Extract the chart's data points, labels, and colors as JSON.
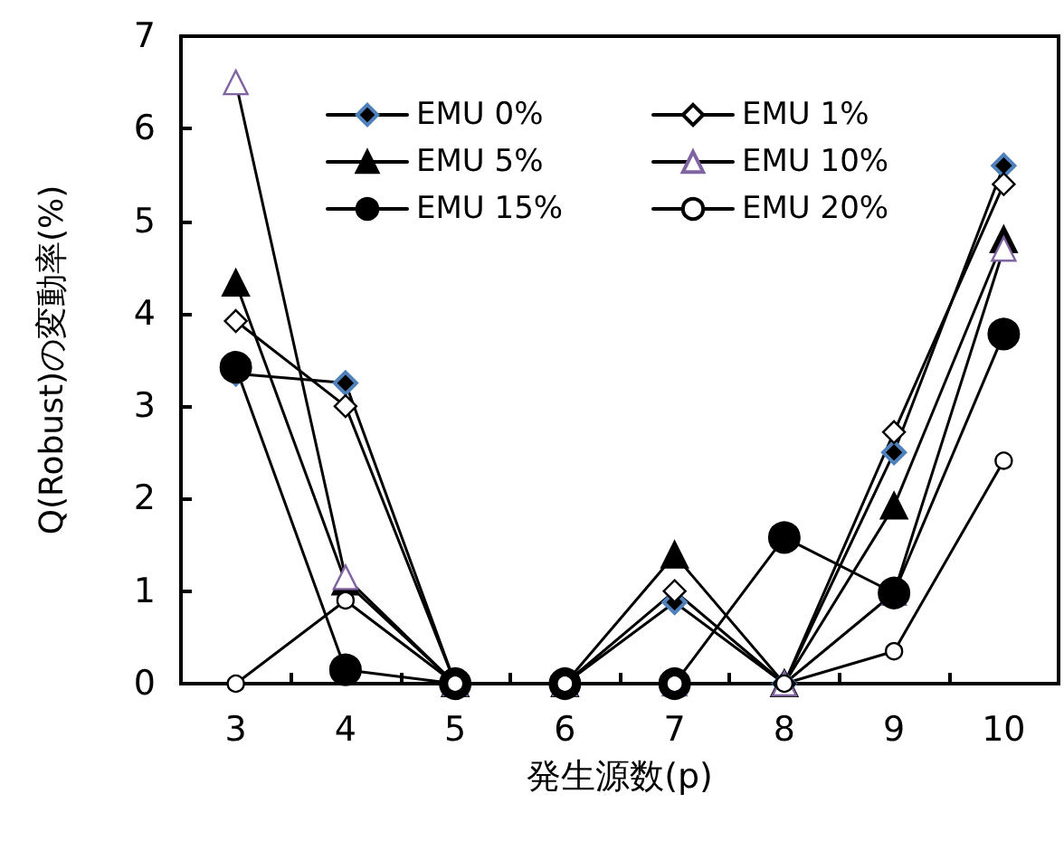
{
  "chart_data": {
    "type": "line",
    "xlabel": "発生源数(p)",
    "ylabel": "Q(Robust)の変動率(%)",
    "categories": [
      "3",
      "4",
      "5",
      "6",
      "7",
      "8",
      "9",
      "10"
    ],
    "ylim": [
      0,
      7
    ],
    "yticks": [
      0,
      1,
      2,
      3,
      4,
      5,
      6,
      7
    ],
    "grid": false,
    "legend": "top",
    "line_style": "solid",
    "series": [
      {
        "name": "EMU 0%",
        "color": "#4f81bd",
        "marker": "diamond",
        "values": [
          3.35,
          3.25,
          0,
          0,
          0.88,
          0,
          2.5,
          5.6
        ]
      },
      {
        "name": "EMU 1%",
        "color": "#000000",
        "marker": "diamond",
        "values": [
          3.92,
          3.0,
          0,
          0,
          1.0,
          0,
          2.72,
          5.4
        ]
      },
      {
        "name": "EMU 5%",
        "color": "#000000",
        "marker": "triangle",
        "values": [
          4.33,
          1.1,
          0,
          0,
          1.39,
          0,
          1.92,
          4.8
        ]
      },
      {
        "name": "EMU 10%",
        "color": "#8064a2",
        "marker": "triangle",
        "values": [
          6.5,
          1.15,
          0,
          0,
          0,
          0,
          0.98,
          4.7
        ]
      },
      {
        "name": "EMU 15%",
        "color": "#000000",
        "marker": "circle",
        "values": [
          3.42,
          0.15,
          0,
          0,
          0,
          1.58,
          0.98,
          3.78
        ]
      },
      {
        "name": "EMU 20%",
        "color": "#000000",
        "marker": "circle",
        "values": [
          0,
          0.9,
          0,
          0,
          0,
          0,
          0.35,
          2.41
        ]
      }
    ]
  }
}
